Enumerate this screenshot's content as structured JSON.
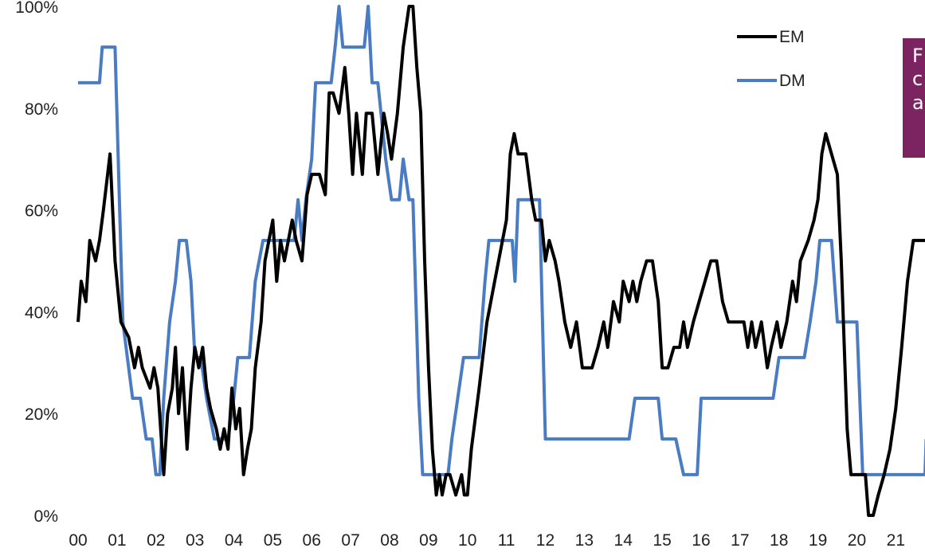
{
  "chart_data": {
    "type": "line",
    "title": "",
    "xlabel": "",
    "ylabel": "",
    "ylim": [
      0,
      100
    ],
    "xlim": [
      2000.0,
      2021.75
    ],
    "y_ticks": [
      "0%",
      "20%",
      "40%",
      "60%",
      "80%",
      "100%"
    ],
    "x_ticks": [
      "00",
      "01",
      "02",
      "03",
      "04",
      "05",
      "06",
      "07",
      "08",
      "09",
      "10",
      "11",
      "12",
      "13",
      "14",
      "15",
      "16",
      "17",
      "18",
      "19",
      "20",
      "21"
    ],
    "legend_position": "top-right",
    "grid": false,
    "series": [
      {
        "name": "EM",
        "color": "#000000",
        "points": [
          [
            2000.0,
            38
          ],
          [
            2000.08,
            46
          ],
          [
            2000.2,
            42
          ],
          [
            2000.3,
            54
          ],
          [
            2000.45,
            50
          ],
          [
            2000.55,
            54
          ],
          [
            2000.65,
            60
          ],
          [
            2000.82,
            71
          ],
          [
            2000.95,
            50
          ],
          [
            2001.1,
            38
          ],
          [
            2001.3,
            35
          ],
          [
            2001.45,
            29
          ],
          [
            2001.55,
            33
          ],
          [
            2001.65,
            29
          ],
          [
            2001.85,
            25
          ],
          [
            2001.95,
            29
          ],
          [
            2002.05,
            25
          ],
          [
            2002.2,
            8
          ],
          [
            2002.3,
            20
          ],
          [
            2002.42,
            25
          ],
          [
            2002.5,
            33
          ],
          [
            2002.58,
            20
          ],
          [
            2002.68,
            29
          ],
          [
            2002.8,
            13
          ],
          [
            2002.9,
            25
          ],
          [
            2003.0,
            33
          ],
          [
            2003.1,
            29
          ],
          [
            2003.2,
            33
          ],
          [
            2003.3,
            25
          ],
          [
            2003.4,
            21
          ],
          [
            2003.55,
            17
          ],
          [
            2003.65,
            13
          ],
          [
            2003.75,
            17
          ],
          [
            2003.85,
            13
          ],
          [
            2003.95,
            25
          ],
          [
            2004.05,
            17
          ],
          [
            2004.15,
            21
          ],
          [
            2004.25,
            8
          ],
          [
            2004.35,
            13
          ],
          [
            2004.45,
            17
          ],
          [
            2004.55,
            29
          ],
          [
            2004.7,
            38
          ],
          [
            2004.8,
            50
          ],
          [
            2004.9,
            54
          ],
          [
            2005.0,
            58
          ],
          [
            2005.1,
            46
          ],
          [
            2005.2,
            54
          ],
          [
            2005.3,
            50
          ],
          [
            2005.4,
            54
          ],
          [
            2005.5,
            58
          ],
          [
            2005.6,
            54
          ],
          [
            2005.75,
            50
          ],
          [
            2005.88,
            63
          ],
          [
            2006.0,
            67
          ],
          [
            2006.2,
            67
          ],
          [
            2006.35,
            63
          ],
          [
            2006.45,
            83
          ],
          [
            2006.55,
            83
          ],
          [
            2006.7,
            79
          ],
          [
            2006.85,
            88
          ],
          [
            2006.95,
            79
          ],
          [
            2007.05,
            67
          ],
          [
            2007.15,
            79
          ],
          [
            2007.3,
            67
          ],
          [
            2007.4,
            79
          ],
          [
            2007.55,
            79
          ],
          [
            2007.7,
            67
          ],
          [
            2007.85,
            79
          ],
          [
            2007.95,
            75
          ],
          [
            2008.05,
            70
          ],
          [
            2008.2,
            79
          ],
          [
            2008.35,
            92
          ],
          [
            2008.5,
            100
          ],
          [
            2008.6,
            100
          ],
          [
            2008.7,
            88
          ],
          [
            2008.8,
            79
          ],
          [
            2008.9,
            50
          ],
          [
            2009.0,
            29
          ],
          [
            2009.1,
            13
          ],
          [
            2009.2,
            4
          ],
          [
            2009.28,
            8
          ],
          [
            2009.35,
            4
          ],
          [
            2009.45,
            8
          ],
          [
            2009.55,
            8
          ],
          [
            2009.7,
            4
          ],
          [
            2009.85,
            8
          ],
          [
            2009.92,
            4
          ],
          [
            2010.0,
            4
          ],
          [
            2010.1,
            13
          ],
          [
            2010.3,
            25
          ],
          [
            2010.5,
            38
          ],
          [
            2010.7,
            46
          ],
          [
            2010.9,
            54
          ],
          [
            2011.0,
            58
          ],
          [
            2011.1,
            71
          ],
          [
            2011.2,
            75
          ],
          [
            2011.3,
            71
          ],
          [
            2011.5,
            71
          ],
          [
            2011.65,
            62
          ],
          [
            2011.75,
            58
          ],
          [
            2011.9,
            58
          ],
          [
            2012.0,
            50
          ],
          [
            2012.1,
            54
          ],
          [
            2012.25,
            50
          ],
          [
            2012.35,
            46
          ],
          [
            2012.5,
            38
          ],
          [
            2012.65,
            33
          ],
          [
            2012.8,
            38
          ],
          [
            2012.95,
            29
          ],
          [
            2013.2,
            29
          ],
          [
            2013.35,
            33
          ],
          [
            2013.5,
            38
          ],
          [
            2013.6,
            33
          ],
          [
            2013.75,
            42
          ],
          [
            2013.9,
            38
          ],
          [
            2014.0,
            46
          ],
          [
            2014.15,
            42
          ],
          [
            2014.25,
            46
          ],
          [
            2014.35,
            42
          ],
          [
            2014.45,
            46
          ],
          [
            2014.6,
            50
          ],
          [
            2014.75,
            50
          ],
          [
            2014.9,
            42
          ],
          [
            2015.0,
            29
          ],
          [
            2015.15,
            29
          ],
          [
            2015.3,
            33
          ],
          [
            2015.45,
            33
          ],
          [
            2015.55,
            38
          ],
          [
            2015.65,
            33
          ],
          [
            2015.8,
            38
          ],
          [
            2015.95,
            42
          ],
          [
            2016.1,
            46
          ],
          [
            2016.25,
            50
          ],
          [
            2016.4,
            50
          ],
          [
            2016.55,
            42
          ],
          [
            2016.7,
            38
          ],
          [
            2016.85,
            38
          ],
          [
            2016.95,
            38
          ],
          [
            2017.1,
            38
          ],
          [
            2017.2,
            33
          ],
          [
            2017.3,
            38
          ],
          [
            2017.4,
            33
          ],
          [
            2017.55,
            38
          ],
          [
            2017.7,
            29
          ],
          [
            2017.8,
            33
          ],
          [
            2017.95,
            38
          ],
          [
            2018.05,
            33
          ],
          [
            2018.2,
            38
          ],
          [
            2018.35,
            46
          ],
          [
            2018.45,
            42
          ],
          [
            2018.55,
            50
          ],
          [
            2018.75,
            54
          ],
          [
            2018.9,
            58
          ],
          [
            2019.0,
            62
          ],
          [
            2019.1,
            71
          ],
          [
            2019.2,
            75
          ],
          [
            2019.35,
            71
          ],
          [
            2019.5,
            67
          ],
          [
            2019.6,
            50
          ],
          [
            2019.75,
            17
          ],
          [
            2019.85,
            8
          ],
          [
            2019.95,
            8
          ],
          [
            2020.1,
            8
          ],
          [
            2020.22,
            8
          ],
          [
            2020.3,
            0
          ],
          [
            2020.42,
            0
          ],
          [
            2020.55,
            4
          ],
          [
            2020.7,
            8
          ],
          [
            2020.85,
            13
          ],
          [
            2021.0,
            21
          ],
          [
            2021.15,
            33
          ],
          [
            2021.3,
            46
          ],
          [
            2021.45,
            54
          ],
          [
            2021.75,
            54
          ]
        ]
      },
      {
        "name": "DM",
        "color": "#4a7cc4",
        "points": [
          [
            2000.0,
            85
          ],
          [
            2000.55,
            85
          ],
          [
            2000.62,
            92
          ],
          [
            2000.95,
            92
          ],
          [
            2001.15,
            38
          ],
          [
            2001.3,
            29
          ],
          [
            2001.4,
            23
          ],
          [
            2001.6,
            23
          ],
          [
            2001.75,
            15
          ],
          [
            2001.9,
            15
          ],
          [
            2002.0,
            8
          ],
          [
            2002.1,
            8
          ],
          [
            2002.2,
            23
          ],
          [
            2002.35,
            38
          ],
          [
            2002.5,
            46
          ],
          [
            2002.6,
            54
          ],
          [
            2002.78,
            54
          ],
          [
            2002.9,
            46
          ],
          [
            2003.0,
            31
          ],
          [
            2003.15,
            31
          ],
          [
            2003.3,
            23
          ],
          [
            2003.5,
            15
          ],
          [
            2003.85,
            15
          ],
          [
            2004.0,
            23
          ],
          [
            2004.1,
            31
          ],
          [
            2004.4,
            31
          ],
          [
            2004.55,
            46
          ],
          [
            2004.75,
            54
          ],
          [
            2005.55,
            54
          ],
          [
            2005.65,
            62
          ],
          [
            2005.75,
            54
          ],
          [
            2005.85,
            62
          ],
          [
            2006.0,
            70
          ],
          [
            2006.1,
            85
          ],
          [
            2006.5,
            85
          ],
          [
            2006.6,
            92
          ],
          [
            2006.7,
            100
          ],
          [
            2006.8,
            92
          ],
          [
            2007.35,
            92
          ],
          [
            2007.45,
            100
          ],
          [
            2007.55,
            85
          ],
          [
            2007.7,
            85
          ],
          [
            2007.9,
            70
          ],
          [
            2008.05,
            62
          ],
          [
            2008.25,
            62
          ],
          [
            2008.35,
            70
          ],
          [
            2008.5,
            62
          ],
          [
            2008.6,
            62
          ],
          [
            2008.75,
            23
          ],
          [
            2008.85,
            8
          ],
          [
            2009.5,
            8
          ],
          [
            2009.6,
            15
          ],
          [
            2009.75,
            23
          ],
          [
            2009.9,
            31
          ],
          [
            2010.3,
            31
          ],
          [
            2010.45,
            46
          ],
          [
            2010.55,
            54
          ],
          [
            2011.15,
            54
          ],
          [
            2011.22,
            46
          ],
          [
            2011.3,
            62
          ],
          [
            2011.85,
            62
          ],
          [
            2012.0,
            15
          ],
          [
            2014.15,
            15
          ],
          [
            2014.3,
            23
          ],
          [
            2014.9,
            23
          ],
          [
            2015.0,
            15
          ],
          [
            2015.35,
            15
          ],
          [
            2015.55,
            8
          ],
          [
            2015.9,
            8
          ],
          [
            2016.0,
            23
          ],
          [
            2017.85,
            23
          ],
          [
            2018.0,
            31
          ],
          [
            2018.65,
            31
          ],
          [
            2018.8,
            38
          ],
          [
            2018.95,
            46
          ],
          [
            2019.05,
            54
          ],
          [
            2019.35,
            54
          ],
          [
            2019.5,
            38
          ],
          [
            2020.0,
            38
          ],
          [
            2020.15,
            8
          ],
          [
            2021.75,
            8
          ],
          [
            2021.78,
            15
          ]
        ]
      }
    ]
  },
  "callout": {
    "text": "F\nc\na",
    "background": "#7b2461"
  }
}
